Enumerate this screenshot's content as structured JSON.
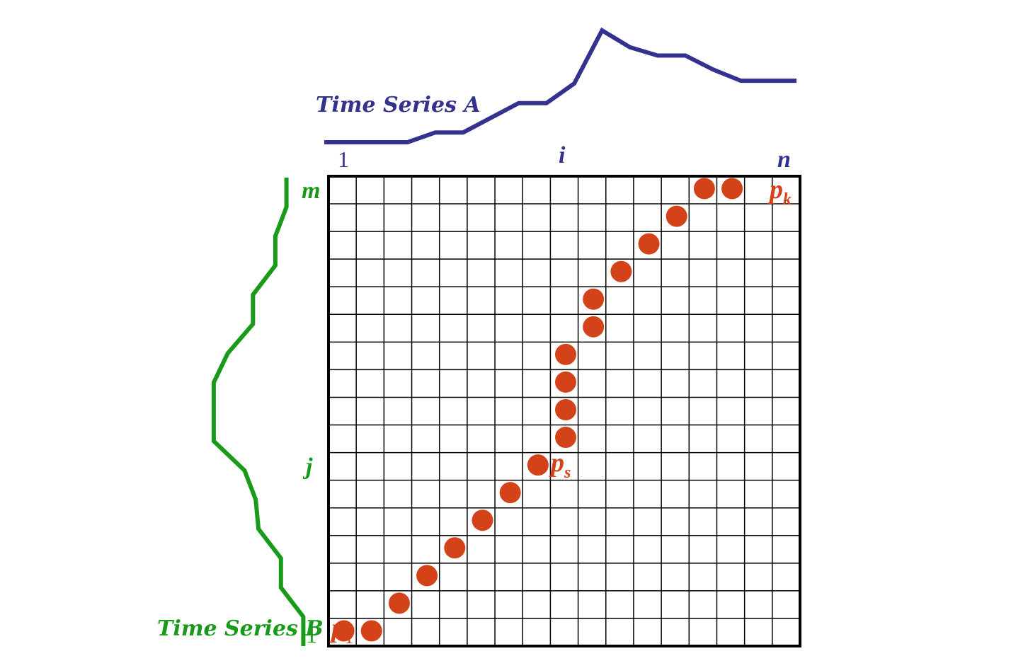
{
  "colors": {
    "series_a": "#33338f",
    "series_b": "#1a9a1a",
    "path": "#d4421a",
    "grid": "#000000"
  },
  "labels": {
    "series_a_title": "Time Series A",
    "series_b_title": "Time Series B",
    "a_start": "1",
    "a_mid": "i",
    "a_end": "n",
    "b_start": "1",
    "b_mid": "j",
    "b_end": "m",
    "p1": {
      "base": "p",
      "sub": "1"
    },
    "ps": {
      "base": "p",
      "sub": "s"
    },
    "pk": {
      "base": "p",
      "sub": "k"
    }
  },
  "grid": {
    "columns": 17,
    "rows": 17
  },
  "warping_path": [
    [
      0,
      0
    ],
    [
      1,
      0
    ],
    [
      2,
      1
    ],
    [
      3,
      2
    ],
    [
      4,
      3
    ],
    [
      5,
      4
    ],
    [
      6,
      5
    ],
    [
      7,
      6
    ],
    [
      8,
      7
    ],
    [
      8,
      8
    ],
    [
      8,
      9
    ],
    [
      8,
      10
    ],
    [
      9,
      11
    ],
    [
      9,
      12
    ],
    [
      10,
      13
    ],
    [
      11,
      14
    ],
    [
      12,
      15
    ],
    [
      13,
      16
    ],
    [
      14,
      16
    ]
  ],
  "series_a": [
    [
      0,
      0
    ],
    [
      3,
      0
    ],
    [
      4,
      0.35
    ],
    [
      5,
      0.35
    ],
    [
      7,
      1.4
    ],
    [
      8,
      1.4
    ],
    [
      9,
      2.1
    ],
    [
      10,
      4.0
    ],
    [
      11,
      3.4
    ],
    [
      12,
      3.1
    ],
    [
      13,
      3.1
    ],
    [
      14,
      2.6
    ],
    [
      15,
      2.2
    ],
    [
      16,
      2.2
    ],
    [
      17,
      2.2
    ]
  ],
  "series_b": [
    [
      0,
      3.3
    ],
    [
      1,
      3.3
    ],
    [
      2,
      2.5
    ],
    [
      3,
      2.5
    ],
    [
      4,
      1.7
    ],
    [
      5,
      1.6
    ],
    [
      6,
      1.2
    ],
    [
      7,
      0.1
    ],
    [
      8,
      0.1
    ],
    [
      9,
      0.1
    ],
    [
      10,
      0.6
    ],
    [
      11,
      1.5
    ],
    [
      12,
      1.5
    ],
    [
      13,
      2.3
    ],
    [
      14,
      2.3
    ],
    [
      15,
      2.7
    ],
    [
      16,
      2.7
    ]
  ]
}
